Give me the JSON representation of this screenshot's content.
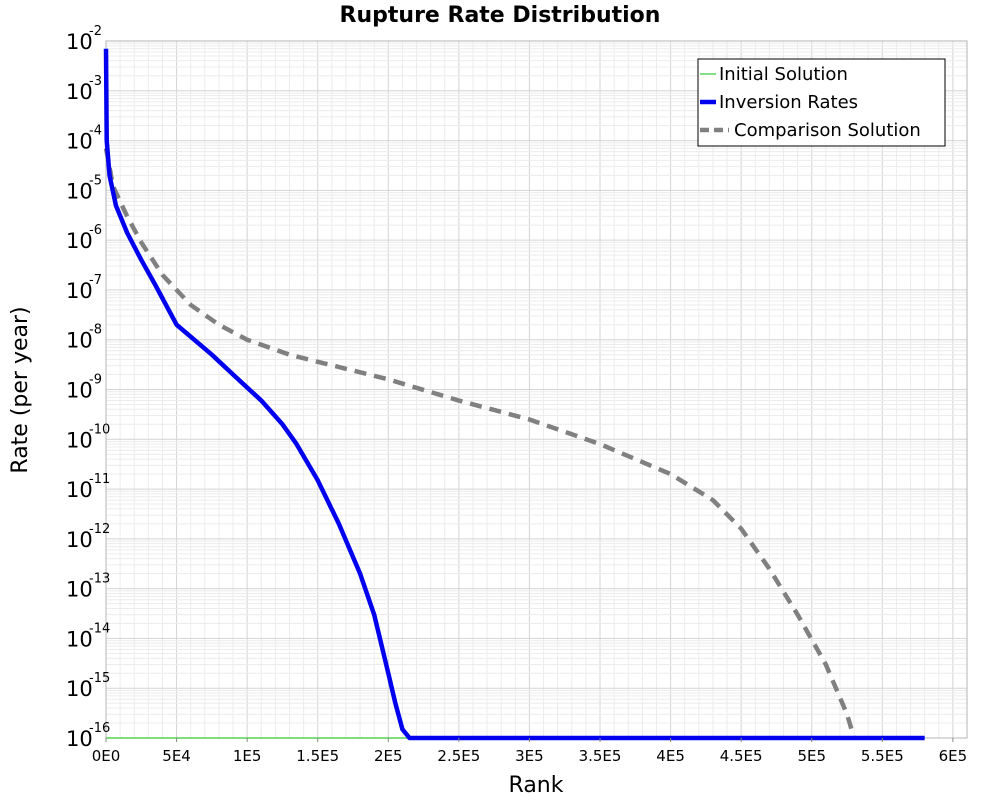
{
  "chart_data": {
    "type": "line",
    "title": "Rupture Rate Distribution",
    "xlabel": "Rank",
    "ylabel": "Rate (per year)",
    "x_scale": "linear",
    "y_scale": "log",
    "xlim": [
      0,
      610000
    ],
    "ylim": [
      1e-16,
      0.01
    ],
    "x_ticks": [
      {
        "value": 0,
        "label": "0E0"
      },
      {
        "value": 50000,
        "label": "5E4"
      },
      {
        "value": 100000,
        "label": "1E5"
      },
      {
        "value": 150000,
        "label": "1.5E5"
      },
      {
        "value": 200000,
        "label": "2E5"
      },
      {
        "value": 250000,
        "label": "2.5E5"
      },
      {
        "value": 300000,
        "label": "3E5"
      },
      {
        "value": 350000,
        "label": "3.5E5"
      },
      {
        "value": 400000,
        "label": "4E5"
      },
      {
        "value": 450000,
        "label": "4.5E5"
      },
      {
        "value": 500000,
        "label": "5E5"
      },
      {
        "value": 550000,
        "label": "5.5E5"
      },
      {
        "value": 600000,
        "label": "6E5"
      }
    ],
    "y_ticks": [
      {
        "value": 1e-16,
        "base": "10",
        "exp": "-16"
      },
      {
        "value": 1e-15,
        "base": "10",
        "exp": "-15"
      },
      {
        "value": 1e-14,
        "base": "10",
        "exp": "-14"
      },
      {
        "value": 1e-13,
        "base": "10",
        "exp": "-13"
      },
      {
        "value": 1e-12,
        "base": "10",
        "exp": "-12"
      },
      {
        "value": 1e-11,
        "base": "10",
        "exp": "-11"
      },
      {
        "value": 1e-10,
        "base": "10",
        "exp": "-10"
      },
      {
        "value": 1e-09,
        "base": "10",
        "exp": "-9"
      },
      {
        "value": 1e-08,
        "base": "10",
        "exp": "-8"
      },
      {
        "value": 1e-07,
        "base": "10",
        "exp": "-7"
      },
      {
        "value": 1e-06,
        "base": "10",
        "exp": "-6"
      },
      {
        "value": 1e-05,
        "base": "10",
        "exp": "-5"
      },
      {
        "value": 0.0001,
        "base": "10",
        "exp": "-4"
      },
      {
        "value": 0.001,
        "base": "10",
        "exp": "-3"
      },
      {
        "value": 0.01,
        "base": "10",
        "exp": "-2"
      }
    ],
    "grid": true,
    "legend_position": "top-right",
    "series": [
      {
        "name": "Initial Solution",
        "color": "#33cc33",
        "style": "solid-thin",
        "points": [
          [
            0,
            1e-16
          ],
          [
            580000,
            1e-16
          ]
        ]
      },
      {
        "name": "Inversion Rates",
        "color": "#0000ee",
        "style": "solid-thick",
        "points": [
          [
            0,
            0.007
          ],
          [
            500,
            0.0001
          ],
          [
            2500,
            2e-05
          ],
          [
            7000,
            5e-06
          ],
          [
            15000,
            1.4e-06
          ],
          [
            25000,
            4e-07
          ],
          [
            35000,
            1.25e-07
          ],
          [
            50000,
            2e-08
          ],
          [
            75000,
            5e-09
          ],
          [
            90000,
            2e-09
          ],
          [
            110000,
            6e-10
          ],
          [
            125000,
            2e-10
          ],
          [
            135000,
            8e-11
          ],
          [
            150000,
            1.5e-11
          ],
          [
            165000,
            2e-12
          ],
          [
            180000,
            2e-13
          ],
          [
            190000,
            3e-14
          ],
          [
            200000,
            2e-15
          ],
          [
            205000,
            5e-16
          ],
          [
            210000,
            1.5e-16
          ],
          [
            215000,
            1e-16
          ],
          [
            580000,
            1e-16
          ]
        ]
      },
      {
        "name": "Comparison Solution",
        "color": "#808080",
        "style": "dashed",
        "points": [
          [
            0,
            7e-05
          ],
          [
            5000,
            1.2e-05
          ],
          [
            15000,
            3e-06
          ],
          [
            25000,
            9e-07
          ],
          [
            40000,
            2e-07
          ],
          [
            60000,
            5e-08
          ],
          [
            80000,
            2e-08
          ],
          [
            100000,
            1e-08
          ],
          [
            130000,
            5e-09
          ],
          [
            200000,
            1.6e-09
          ],
          [
            250000,
            6e-10
          ],
          [
            300000,
            2.5e-10
          ],
          [
            350000,
            8e-11
          ],
          [
            400000,
            2e-11
          ],
          [
            430000,
            6e-12
          ],
          [
            450000,
            1.6e-12
          ],
          [
            470000,
            2.5e-13
          ],
          [
            490000,
            3e-14
          ],
          [
            510000,
            3e-15
          ],
          [
            525000,
            3e-16
          ],
          [
            530000,
            1e-16
          ]
        ]
      }
    ]
  }
}
